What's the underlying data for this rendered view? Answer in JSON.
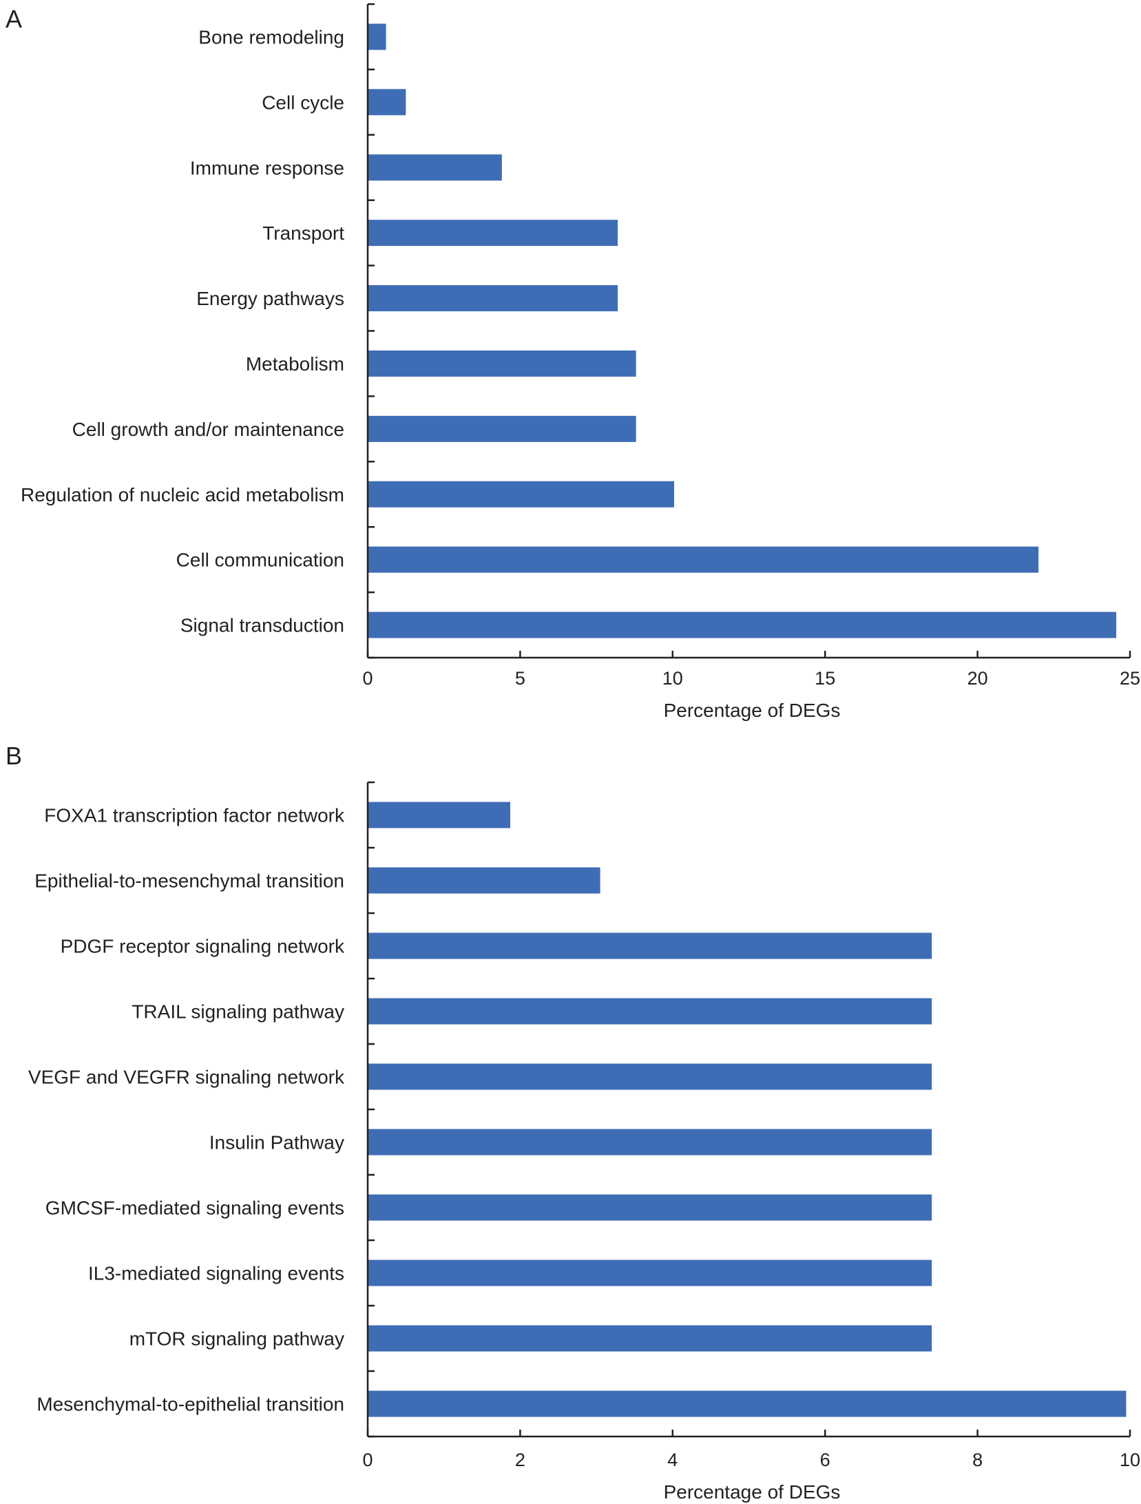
{
  "chart_data": [
    {
      "panel": "A",
      "type": "bar",
      "orientation": "horizontal",
      "categories": [
        "Bone remodeling",
        "Cell cycle",
        "Immune response",
        "Transport",
        "Energy pathways",
        "Metabolism",
        "Cell growth and/or maintenance",
        "Regulation of nucleic acid metabolism",
        "Cell communication",
        "Signal transduction"
      ],
      "values": [
        0.6,
        1.25,
        4.4,
        8.2,
        8.2,
        8.8,
        8.8,
        10.05,
        22.0,
        24.55
      ],
      "xlabel": "Percentage of DEGs",
      "ylabel": "",
      "xlim": [
        0,
        25
      ],
      "xticks": [
        "0",
        "5",
        "10",
        "15",
        "20",
        "25"
      ],
      "grid": false,
      "legend": "none",
      "bar_color": "#3f6db5"
    },
    {
      "panel": "B",
      "type": "bar",
      "orientation": "horizontal",
      "categories": [
        "FOXA1 transcription factor network",
        "Epithelial-to-mesenchymal transition",
        "PDGF receptor signaling network",
        "TRAIL signaling pathway",
        "VEGF and VEGFR signaling network",
        "Insulin Pathway",
        "GMCSF-mediated signaling events",
        "IL3-mediated signaling events",
        "mTOR signaling pathway",
        "Mesenchymal-to-epithelial transition"
      ],
      "values": [
        1.87,
        3.05,
        7.4,
        7.4,
        7.4,
        7.4,
        7.4,
        7.4,
        7.4,
        9.95
      ],
      "xlabel": "Percentage of DEGs",
      "ylabel": "",
      "xlim": [
        0,
        10
      ],
      "xticks": [
        "0",
        "2",
        "4",
        "6",
        "8",
        "10"
      ],
      "grid": false,
      "legend": "none",
      "bar_color": "#3f6db5"
    }
  ]
}
